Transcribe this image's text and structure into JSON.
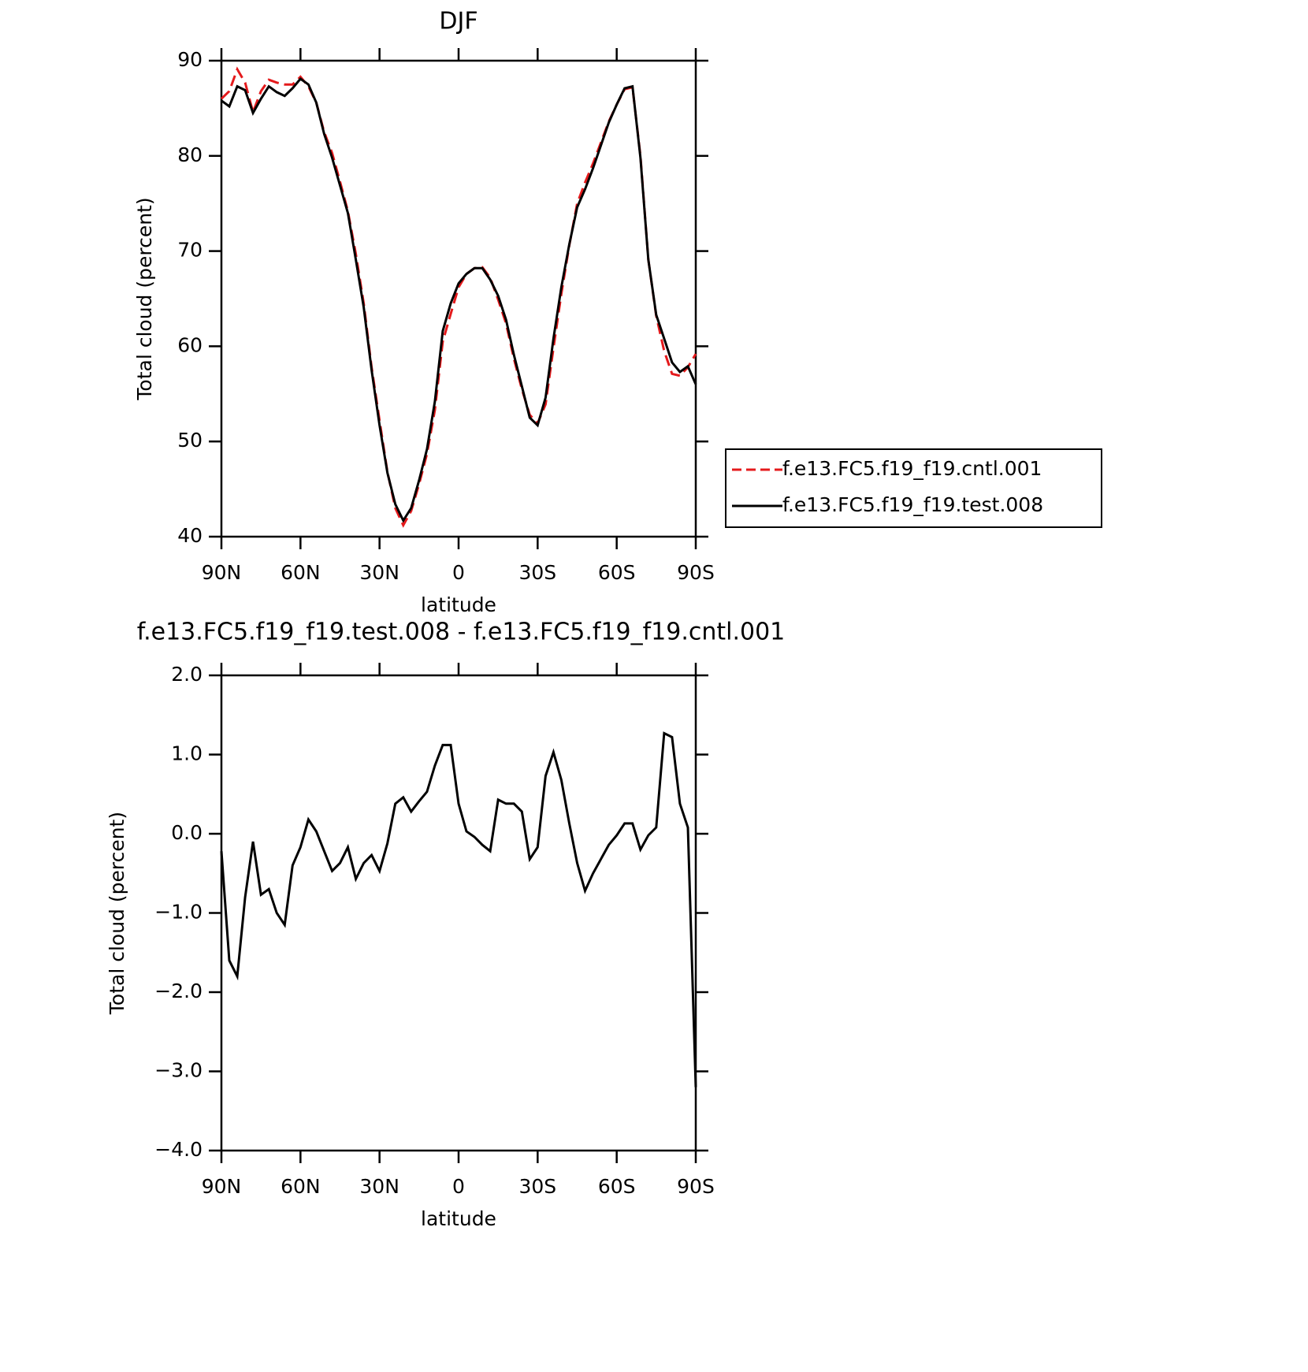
{
  "chart_data": [
    {
      "type": "line",
      "title": "DJF",
      "x_label": "latitude",
      "y_label": "Total cloud (percent)",
      "x": [
        90,
        87,
        84,
        81,
        78,
        75,
        72,
        69,
        66,
        63,
        60,
        57,
        54,
        51,
        48,
        45,
        42,
        39,
        36,
        33,
        30,
        27,
        24,
        21,
        18,
        15,
        12,
        9,
        6,
        3,
        0,
        -3,
        -6,
        -9,
        -12,
        -15,
        -18,
        -21,
        -24,
        -27,
        -30,
        -33,
        -36,
        -39,
        -42,
        -45,
        -48,
        -51,
        -54,
        -57,
        -60,
        -63,
        -66,
        -69,
        -72,
        -75,
        -78,
        -81,
        -84,
        -87,
        -90
      ],
      "series": [
        {
          "name": "f.e13.FC5.f19_f19.cntl.001",
          "color": "#e41a1c",
          "dash": true,
          "values": [
            86.0,
            86.8,
            89.1,
            87.7,
            84.6,
            86.8,
            88.0,
            87.7,
            87.5,
            87.5,
            88.3,
            87.3,
            85.6,
            82.5,
            80.3,
            77.3,
            74.2,
            69.7,
            64.5,
            57.8,
            52.2,
            46.8,
            43.0,
            41.2,
            42.7,
            45.5,
            48.7,
            53.3,
            60.5,
            63.4,
            66.2,
            67.6,
            68.2,
            68.3,
            67.2,
            64.9,
            62.4,
            58.7,
            55.5,
            52.8,
            51.9,
            53.9,
            59.8,
            65.5,
            70.6,
            75.0,
            77.2,
            79.2,
            81.4,
            83.6,
            85.4,
            87.0,
            87.2,
            80.0,
            69.1,
            63.2,
            59.5,
            57.1,
            56.9,
            57.8,
            59.2
          ]
        },
        {
          "name": "f.e13.FC5.f19_f19.test.008",
          "color": "#000000",
          "dash": false,
          "values": [
            85.8,
            85.2,
            87.3,
            86.9,
            84.5,
            86.0,
            87.3,
            86.7,
            86.3,
            87.1,
            88.1,
            87.5,
            85.6,
            82.3,
            79.8,
            76.9,
            74.0,
            69.1,
            64.1,
            57.5,
            51.7,
            46.7,
            43.4,
            41.7,
            43.0,
            45.9,
            49.2,
            54.2,
            61.6,
            64.5,
            66.6,
            67.6,
            68.2,
            68.2,
            67.0,
            65.3,
            62.8,
            59.1,
            55.8,
            52.5,
            51.7,
            54.6,
            60.8,
            66.2,
            70.7,
            74.6,
            76.5,
            78.7,
            81.1,
            83.5,
            85.4,
            87.1,
            87.3,
            79.8,
            69.1,
            63.3,
            60.8,
            58.3,
            57.3,
            57.9,
            56.0
          ]
        }
      ],
      "xlim": [
        90,
        -90
      ],
      "xticks": [
        {
          "value": 90,
          "label": "90N"
        },
        {
          "value": 60,
          "label": "60N"
        },
        {
          "value": 30,
          "label": "30N"
        },
        0,
        {
          "value": -30,
          "label": "30S"
        },
        {
          "value": -60,
          "label": "60S"
        },
        {
          "value": -90,
          "label": "90S"
        }
      ],
      "ylim": [
        40,
        90
      ],
      "yticks": [
        40,
        50,
        60,
        70,
        80,
        90
      ],
      "legend": "right"
    },
    {
      "type": "line",
      "title": "f.e13.FC5.f19_f19.test.008 - f.e13.FC5.f19_f19.cntl.001",
      "x_label": "latitude",
      "y_label": "Total cloud (percent)",
      "x": [
        90,
        87,
        84,
        81,
        78,
        75,
        72,
        69,
        66,
        63,
        60,
        57,
        54,
        51,
        48,
        45,
        42,
        39,
        36,
        33,
        30,
        27,
        24,
        21,
        18,
        15,
        12,
        9,
        6,
        3,
        0,
        -3,
        -6,
        -9,
        -12,
        -15,
        -18,
        -21,
        -24,
        -27,
        -30,
        -33,
        -36,
        -39,
        -42,
        -45,
        -48,
        -51,
        -54,
        -57,
        -60,
        -63,
        -66,
        -69,
        -72,
        -75,
        -78,
        -81,
        -84,
        -87,
        -90
      ],
      "color": "#000000",
      "values": [
        -0.22,
        -1.6,
        -1.8,
        -0.8,
        -0.1,
        -0.77,
        -0.7,
        -1.0,
        -1.15,
        -0.4,
        -0.17,
        0.18,
        0.03,
        -0.22,
        -0.47,
        -0.37,
        -0.17,
        -0.57,
        -0.37,
        -0.27,
        -0.47,
        -0.12,
        0.38,
        0.46,
        0.28,
        0.41,
        0.53,
        0.86,
        1.12,
        1.12,
        0.38,
        0.03,
        -0.04,
        -0.14,
        -0.22,
        0.43,
        0.38,
        0.38,
        0.28,
        -0.32,
        -0.17,
        0.73,
        1.03,
        0.68,
        0.13,
        -0.37,
        -0.72,
        -0.5,
        -0.32,
        -0.14,
        -0.02,
        0.13,
        0.13,
        -0.2,
        -0.02,
        0.08,
        1.27,
        1.22,
        0.38,
        0.08,
        -3.2
      ],
      "xlim": [
        90,
        -90
      ],
      "xticks": [
        {
          "value": 90,
          "label": "90N"
        },
        {
          "value": 60,
          "label": "60N"
        },
        {
          "value": 30,
          "label": "30N"
        },
        0,
        {
          "value": -30,
          "label": "30S"
        },
        {
          "value": -60,
          "label": "60S"
        },
        {
          "value": -90,
          "label": "90S"
        }
      ],
      "ylim": [
        -4,
        2
      ],
      "yticks": [
        {
          "value": -4,
          "label": "−4.0"
        },
        {
          "value": -3,
          "label": "−3.0"
        },
        {
          "value": -2,
          "label": "−2.0"
        },
        {
          "value": -1,
          "label": "−1.0"
        },
        {
          "value": 0,
          "label": "0.0"
        },
        {
          "value": 1,
          "label": "1.0"
        },
        {
          "value": 2,
          "label": "2.0"
        }
      ]
    }
  ]
}
